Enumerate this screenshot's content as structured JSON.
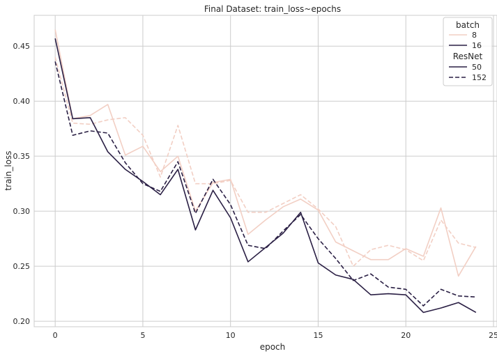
{
  "chart_data": {
    "type": "line",
    "title": "Final Dataset: train_loss~epochs",
    "xlabel": "epoch",
    "ylabel": "train_loss",
    "xlim": [
      -1.2,
      25.2
    ],
    "ylim": [
      0.195,
      0.478
    ],
    "xticks": [
      0,
      5,
      10,
      15,
      20,
      25
    ],
    "yticks": [
      0.2,
      0.25,
      0.3,
      0.35,
      0.4,
      0.45
    ],
    "grid": true,
    "legend_position": "top-right",
    "legend": {
      "hue_title": "batch",
      "hue_items": [
        {
          "label": "8",
          "color": "#f2cfc4"
        },
        {
          "label": "16",
          "color": "#2a1f44"
        }
      ],
      "style_title": "ResNet",
      "style_items": [
        {
          "label": "50",
          "dash": "solid"
        },
        {
          "label": "152",
          "dash": "dashed"
        }
      ]
    },
    "x": [
      0,
      1,
      2,
      3,
      4,
      5,
      6,
      7,
      8,
      9,
      10,
      11,
      12,
      13,
      14,
      15,
      16,
      17,
      18,
      19,
      20,
      21,
      22,
      23,
      24
    ],
    "series": [
      {
        "batch": "8",
        "resnet": "50",
        "color": "#f2cfc4",
        "dash": "solid",
        "values": [
          0.465,
          0.384,
          0.387,
          0.397,
          0.351,
          0.359,
          0.336,
          0.35,
          0.3,
          0.326,
          0.329,
          0.279,
          0.292,
          0.304,
          0.311,
          0.301,
          0.272,
          0.264,
          0.256,
          0.256,
          0.266,
          0.259,
          0.303,
          0.241,
          0.268
        ]
      },
      {
        "batch": "8",
        "resnet": "152",
        "color": "#f2cfc4",
        "dash": "dashed",
        "values": [
          0.44,
          0.38,
          0.379,
          0.383,
          0.385,
          0.369,
          0.331,
          0.378,
          0.325,
          0.325,
          0.328,
          0.299,
          0.299,
          0.307,
          0.315,
          0.302,
          0.286,
          0.25,
          0.265,
          0.269,
          0.265,
          0.255,
          0.292,
          0.271,
          0.267
        ]
      },
      {
        "batch": "16",
        "resnet": "50",
        "color": "#2a1f44",
        "dash": "solid",
        "values": [
          0.457,
          0.384,
          0.385,
          0.354,
          0.338,
          0.327,
          0.315,
          0.338,
          0.283,
          0.319,
          0.294,
          0.254,
          0.267,
          0.28,
          0.299,
          0.253,
          0.242,
          0.238,
          0.224,
          0.225,
          0.224,
          0.208,
          0.212,
          0.217,
          0.208
        ]
      },
      {
        "batch": "16",
        "resnet": "152",
        "color": "#2a1f44",
        "dash": "dashed",
        "values": [
          0.436,
          0.369,
          0.373,
          0.371,
          0.344,
          0.325,
          0.318,
          0.345,
          0.298,
          0.329,
          0.306,
          0.269,
          0.266,
          0.282,
          0.297,
          0.275,
          0.257,
          0.237,
          0.243,
          0.231,
          0.229,
          0.214,
          0.229,
          0.223,
          0.222
        ]
      }
    ]
  }
}
